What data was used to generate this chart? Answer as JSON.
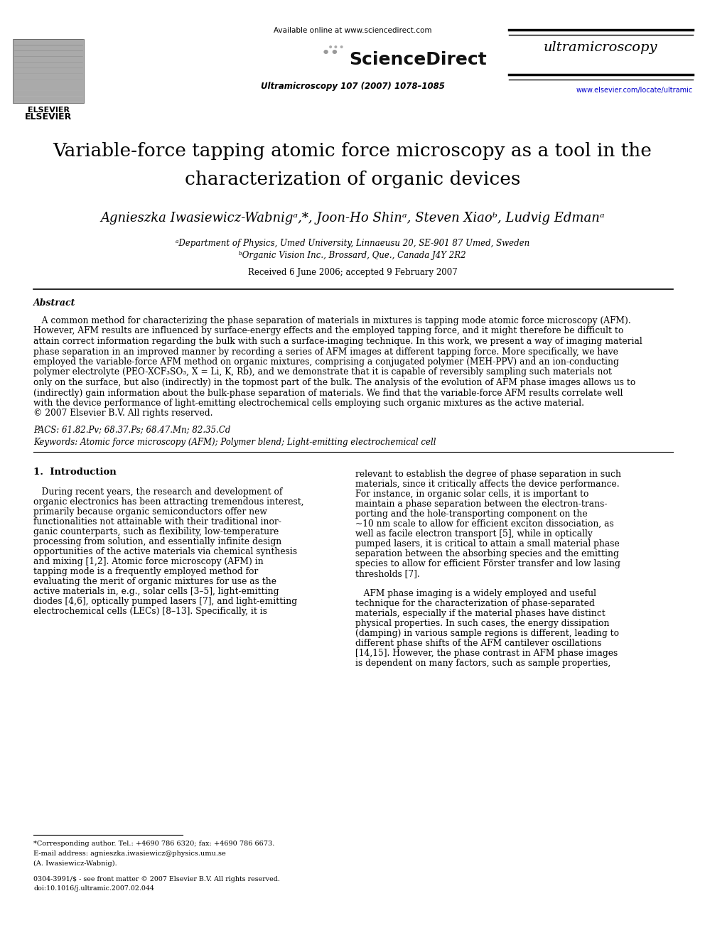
{
  "bg_color": "#ffffff",
  "fig_width": 9.92,
  "fig_height": 13.23,
  "dpi": 100,
  "lm": 0.048,
  "rm": 0.955,
  "header": {
    "available_online": "Available online at www.sciencedirect.com",
    "journal_info": "Ultramicroscopy 107 (2007) 1078–1085",
    "url": "www.elsevier.com/locate/ultramic",
    "elsevier_label": "ELSEVIER",
    "journal_italic": "ultramicroscopy",
    "sciencedirect": "ScienceDirect"
  },
  "title_line1": "Variable-force tapping atomic force microscopy as a tool in the",
  "title_line2": "characterization of organic devices",
  "authors": "Agnieszka Iwasiewicz-Wabnigᵃ,*, Joon-Ho Shinᵃ, Steven Xiaoᵇ, Ludvig Edmanᵃ",
  "affil1": "ᵃDepartment of Physics, Umed University, Linnaeusu 20, SE-901 87 Umed, Sweden",
  "affil2": "ᵇOrganic Vision Inc., Brossard, Que., Canada J4Y 2R2",
  "received": "Received 6 June 2006; accepted 9 February 2007",
  "abstract_label": "Abstract",
  "abstract_lines": [
    "   A common method for characterizing the phase separation of materials in mixtures is tapping mode atomic force microscopy (AFM).",
    "However, AFM results are influenced by surface-energy effects and the employed tapping force, and it might therefore be difficult to",
    "attain correct information regarding the bulk with such a surface-imaging technique. In this work, we present a way of imaging material",
    "phase separation in an improved manner by recording a series of AFM images at different tapping force. More specifically, we have",
    "employed the variable-force AFM method on organic mixtures, comprising a conjugated polymer (MEH-PPV) and an ion-conducting",
    "polymer electrolyte (PEO-XCF₃SO₃, X = Li, K, Rb), and we demonstrate that it is capable of reversibly sampling such materials not",
    "only on the surface, but also (indirectly) in the topmost part of the bulk. The analysis of the evolution of AFM phase images allows us to",
    "(indirectly) gain information about the bulk-phase separation of materials. We find that the variable-force AFM results correlate well",
    "with the device performance of light-emitting electrochemical cells employing such organic mixtures as the active material.",
    "© 2007 Elsevier B.V. All rights reserved."
  ],
  "pacs": "PACS: 61.82.Pv; 68.37.Ps; 68.47.Mn; 82.35.Cd",
  "keywords": "Keywords: Atomic force microscopy (AFM); Polymer blend; Light-emitting electrochemical cell",
  "section1_title": "1.  Introduction",
  "col1_lines": [
    "   During recent years, the research and development of",
    "organic electronics has been attracting tremendous interest,",
    "primarily because organic semiconductors offer new",
    "functionalities not attainable with their traditional inor-",
    "ganic counterparts, such as flexibility, low-temperature",
    "processing from solution, and essentially infinite design",
    "opportunities of the active materials via chemical synthesis",
    "and mixing [1,2]. Atomic force microscopy (AFM) in",
    "tapping mode is a frequently employed method for",
    "evaluating the merit of organic mixtures for use as the",
    "active materials in, e.g., solar cells [3–5], light-emitting",
    "diodes [4,6], optically pumped lasers [7], and light-emitting",
    "electrochemical cells (LECs) [8–13]. Specifically, it is"
  ],
  "col2_lines": [
    "relevant to establish the degree of phase separation in such",
    "materials, since it critically affects the device performance.",
    "For instance, in organic solar cells, it is important to",
    "maintain a phase separation between the electron-trans-",
    "porting and the hole-transporting component on the",
    "~10 nm scale to allow for efficient exciton dissociation, as",
    "well as facile electron transport [5], while in optically",
    "pumped lasers, it is critical to attain a small material phase",
    "separation between the absorbing species and the emitting",
    "species to allow for efficient Förster transfer and low lasing",
    "thresholds [7].",
    "",
    "   AFM phase imaging is a widely employed and useful",
    "technique for the characterization of phase-separated",
    "materials, especially if the material phases have distinct",
    "physical properties. In such cases, the energy dissipation",
    "(damping) in various sample regions is different, leading to",
    "different phase shifts of the AFM cantilever oscillations",
    "[14,15]. However, the phase contrast in AFM phase images",
    "is dependent on many factors, such as sample properties,"
  ],
  "footnote1": "*Corresponding author. Tel.: +4690 786 6320; fax: +4690 786 6673.",
  "footnote2": "E-mail address: agnieszka.iwasiewicz@physics.umu.se",
  "footnote3": "(A. Iwasiewicz-Wabnig).",
  "copyright1": "0304-3991/$ - see front matter © 2007 Elsevier B.V. All rights reserved.",
  "copyright2": "doi:10.1016/j.ultramic.2007.02.044"
}
